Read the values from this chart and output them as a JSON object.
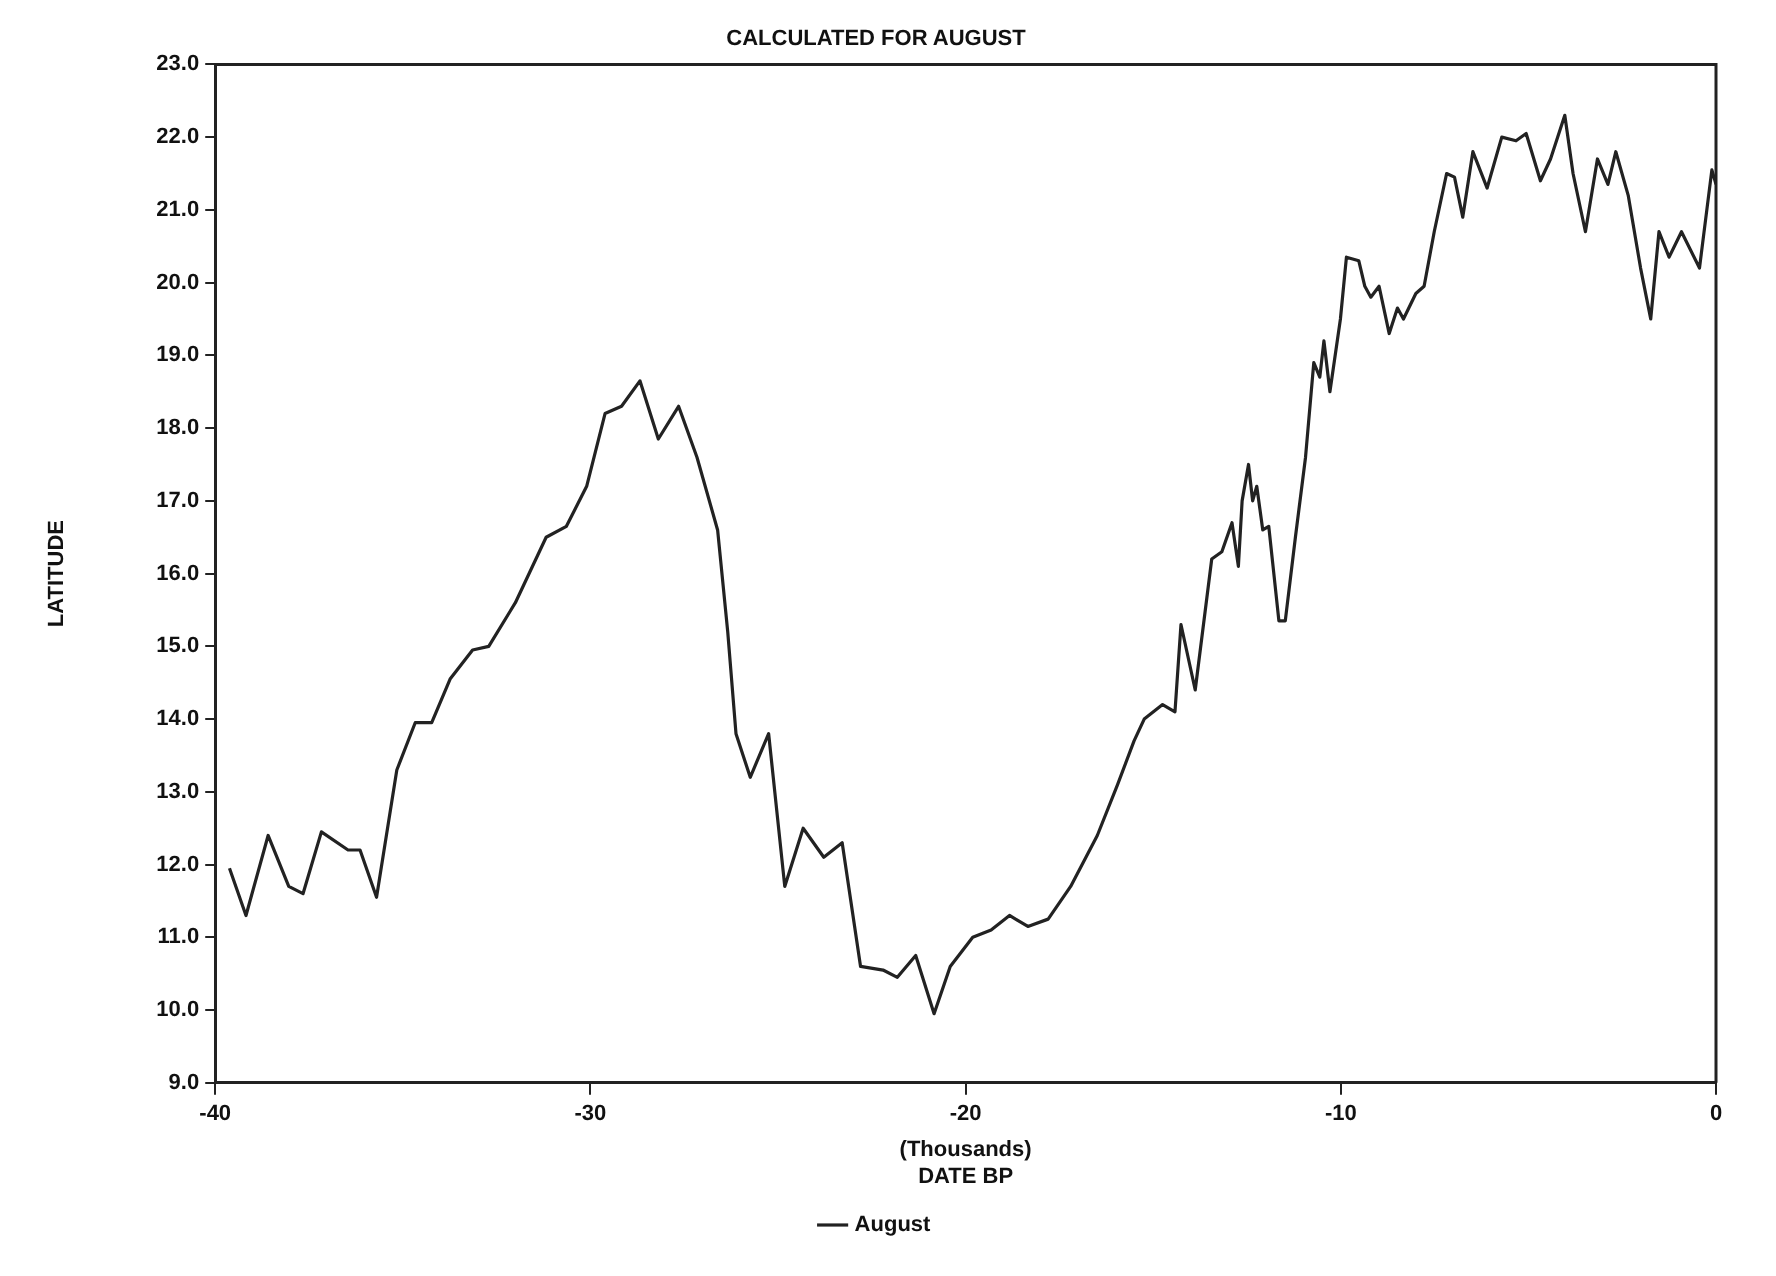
{
  "chart_data": {
    "type": "line",
    "title": "CALCULATED FOR AUGUST",
    "xlabel": "(Thousands)\nDATE BP",
    "ylabel": "LATITUDE",
    "legend": "bottom",
    "marker": "none",
    "line_style": "solid",
    "grid": false,
    "xlim": [
      -40,
      0
    ],
    "xticks": [
      -40,
      -30,
      -20,
      -10,
      0
    ],
    "ylim": [
      9,
      23
    ],
    "yticks": [
      {
        "value": 9,
        "label": "9.0"
      },
      {
        "value": 10,
        "label": "10.0"
      },
      {
        "value": 11,
        "label": "11.0"
      },
      {
        "value": 12,
        "label": "12.0"
      },
      {
        "value": 13,
        "label": "13.0"
      },
      {
        "value": 14,
        "label": "14.0"
      },
      {
        "value": 15,
        "label": "15.0"
      },
      {
        "value": 16,
        "label": "16.0"
      },
      {
        "value": 17,
        "label": "17.0"
      },
      {
        "value": 18,
        "label": "18.0"
      },
      {
        "value": 19,
        "label": "19.0"
      },
      {
        "value": 20,
        "label": "20.0"
      },
      {
        "value": 21,
        "label": "21.0"
      },
      {
        "value": 22,
        "label": "22.0"
      },
      {
        "value": 23,
        "label": "23.0"
      }
    ],
    "series": [
      {
        "name": "August",
        "color": "#222222",
        "x": [
          -39.62,
          -39.18,
          -38.59,
          -38.04,
          -37.66,
          -37.17,
          -36.46,
          -36.14,
          -35.7,
          -35.16,
          -34.67,
          -34.23,
          -33.74,
          -33.14,
          -32.71,
          -32.0,
          -31.18,
          -30.64,
          -30.1,
          -29.61,
          -29.17,
          -28.68,
          -28.19,
          -27.65,
          -27.16,
          -26.61,
          -26.34,
          -26.12,
          -25.74,
          -25.25,
          -24.82,
          -24.33,
          -23.78,
          -23.29,
          -22.8,
          -22.2,
          -21.82,
          -21.33,
          -20.84,
          -20.41,
          -19.81,
          -19.32,
          -18.83,
          -18.34,
          -17.8,
          -17.2,
          -16.49,
          -15.95,
          -15.51,
          -15.24,
          -14.75,
          -14.42,
          -14.26,
          -13.88,
          -13.44,
          -13.17,
          -12.9,
          -12.73,
          -12.63,
          -12.46,
          -12.35,
          -12.24,
          -12.08,
          -11.92,
          -11.65,
          -11.48,
          -11.21,
          -10.94,
          -10.72,
          -10.56,
          -10.45,
          -10.29,
          -10.01,
          -9.85,
          -9.52,
          -9.36,
          -9.2,
          -8.98,
          -8.71,
          -8.49,
          -8.33,
          -8.0,
          -7.78,
          -7.51,
          -7.18,
          -6.97,
          -6.75,
          -6.48,
          -6.1,
          -5.71,
          -5.33,
          -5.06,
          -4.68,
          -4.41,
          -4.03,
          -3.81,
          -3.48,
          -3.16,
          -2.88,
          -2.67,
          -2.34,
          -2.01,
          -1.74,
          -1.52,
          -1.25,
          -0.92,
          -0.44,
          -0.11,
          0
        ],
        "values": [
          11.95,
          11.3,
          12.4,
          11.7,
          11.6,
          12.45,
          12.2,
          12.2,
          11.55,
          13.3,
          13.95,
          13.95,
          14.55,
          14.95,
          15.0,
          15.6,
          16.5,
          16.65,
          17.2,
          18.2,
          18.3,
          18.65,
          17.85,
          18.3,
          17.6,
          16.6,
          15.2,
          13.8,
          13.2,
          13.8,
          11.7,
          12.5,
          12.1,
          12.3,
          10.6,
          10.55,
          10.45,
          10.75,
          9.95,
          10.6,
          11.0,
          11.1,
          11.3,
          11.15,
          11.25,
          11.7,
          12.4,
          13.1,
          13.7,
          14.0,
          14.2,
          14.1,
          15.3,
          14.4,
          16.2,
          16.3,
          16.7,
          16.1,
          17.0,
          17.5,
          17.0,
          17.2,
          16.6,
          16.65,
          15.35,
          15.35,
          16.5,
          17.6,
          18.9,
          18.7,
          19.2,
          18.5,
          19.5,
          20.35,
          20.3,
          19.95,
          19.8,
          19.95,
          19.3,
          19.65,
          19.5,
          19.85,
          19.95,
          20.7,
          21.5,
          21.45,
          20.9,
          21.8,
          21.3,
          22.0,
          21.95,
          22.05,
          21.4,
          21.7,
          22.3,
          21.5,
          20.7,
          21.7,
          21.35,
          21.8,
          21.2,
          20.2,
          19.5,
          20.7,
          20.35,
          20.7,
          20.2,
          21.55,
          21.35
        ]
      }
    ]
  }
}
